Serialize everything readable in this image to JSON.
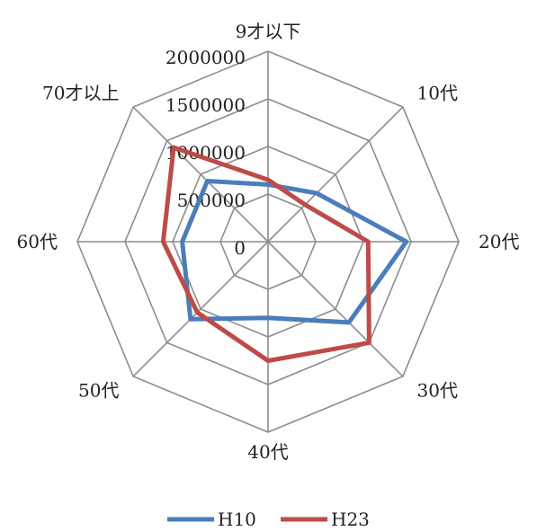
{
  "chart_data": {
    "type": "radar",
    "categories": [
      "9才以下",
      "10代",
      "20代",
      "30代",
      "40代",
      "50代",
      "60代",
      "70才以上"
    ],
    "series": [
      {
        "name": "H10",
        "values": [
          600000,
          720000,
          1450000,
          1200000,
          800000,
          1150000,
          900000,
          900000
        ],
        "color": "#4a7ebb"
      },
      {
        "name": "H23",
        "values": [
          650000,
          550000,
          1050000,
          1500000,
          1250000,
          1050000,
          1100000,
          1400000
        ],
        "color": "#be4b48"
      }
    ],
    "ticks": [
      "0",
      "500000",
      "1000000",
      "1500000",
      "2000000"
    ],
    "range": [
      0,
      2000000
    ],
    "grid": true,
    "legend": "bottom"
  }
}
